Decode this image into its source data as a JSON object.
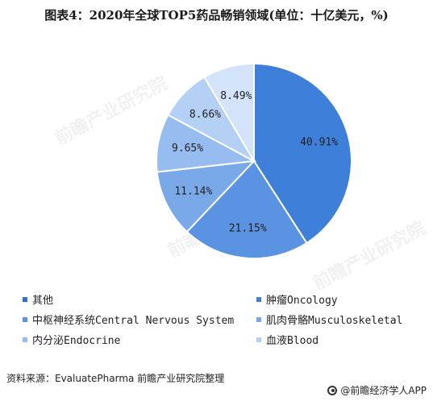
{
  "title": "图表4：2020年全球TOP5药品畅销领域(单位：十亿美元，%)",
  "source": "资料来源：EvaluatePharma 前瞻产业研究院整理",
  "brand": "@前瞻经济学人APP",
  "watermark": "前瞻产业研究院",
  "chart_data": {
    "type": "pie",
    "title": "图表4：2020年全球TOP5药品畅销领域(单位：十亿美元，%)",
    "slices": [
      {
        "name": "肿瘤Oncology",
        "value": 40.91,
        "label": "40.91%",
        "color": "#3d7fd9"
      },
      {
        "name": "中枢神经系统Central Nervous System",
        "value": 21.15,
        "label": "21.15%",
        "color": "#5b93e3"
      },
      {
        "name": "肌肉骨骼Musculoskeletal",
        "value": 11.14,
        "label": "11.14%",
        "color": "#7aa9ea"
      },
      {
        "name": "内分泌Endocrine",
        "value": 9.65,
        "label": "9.65%",
        "color": "#97bcf0"
      },
      {
        "name": "血液Blood",
        "value": 8.66,
        "label": "8.66%",
        "color": "#b5d0f5"
      },
      {
        "name": "其他",
        "value": 8.49,
        "label": "8.49%",
        "color": "#d3e3fa"
      }
    ],
    "legend": [
      {
        "label": "其他",
        "color": "#2f6fd0"
      },
      {
        "label": "肿瘤Oncology",
        "color": "#3d7fd9"
      },
      {
        "label": "中枢神经系统Central Nervous System",
        "color": "#5b93e3"
      },
      {
        "label": "肌肉骨骼Musculoskeletal",
        "color": "#7aa9ea"
      },
      {
        "label": "内分泌Endocrine",
        "color": "#97bcf0"
      },
      {
        "label": "血液Blood",
        "color": "#b5d0f5"
      }
    ],
    "legend_position": "bottom",
    "start_angle": "top, clockwise"
  }
}
